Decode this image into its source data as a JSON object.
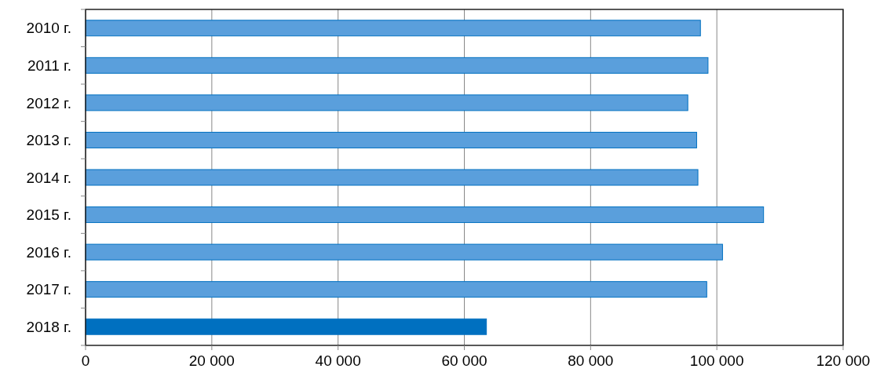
{
  "chart_data": {
    "type": "bar",
    "orientation": "horizontal",
    "categories": [
      "2010 г.",
      "2011 г.",
      "2012 г.",
      "2013 г.",
      "2014 г.",
      "2015 г.",
      "2016 г.",
      "2017 г.",
      "2018 г."
    ],
    "values": [
      97400,
      98600,
      95400,
      96800,
      97000,
      107400,
      100900,
      98400,
      63500
    ],
    "colors": [
      "#5a9fdc",
      "#5a9fdc",
      "#5a9fdc",
      "#5a9fdc",
      "#5a9fdc",
      "#5a9fdc",
      "#5a9fdc",
      "#5a9fdc",
      "#0070c0"
    ],
    "xlim": [
      0,
      120000
    ],
    "xticks": [
      {
        "value": 0,
        "label": "0"
      },
      {
        "value": 20000,
        "label": "20 000"
      },
      {
        "value": 40000,
        "label": "40 000"
      },
      {
        "value": 60000,
        "label": "60 000"
      },
      {
        "value": 80000,
        "label": "80 000"
      },
      {
        "value": 100000,
        "label": "100 000"
      },
      {
        "value": 120000,
        "label": "120 000"
      }
    ],
    "grid": "x"
  }
}
